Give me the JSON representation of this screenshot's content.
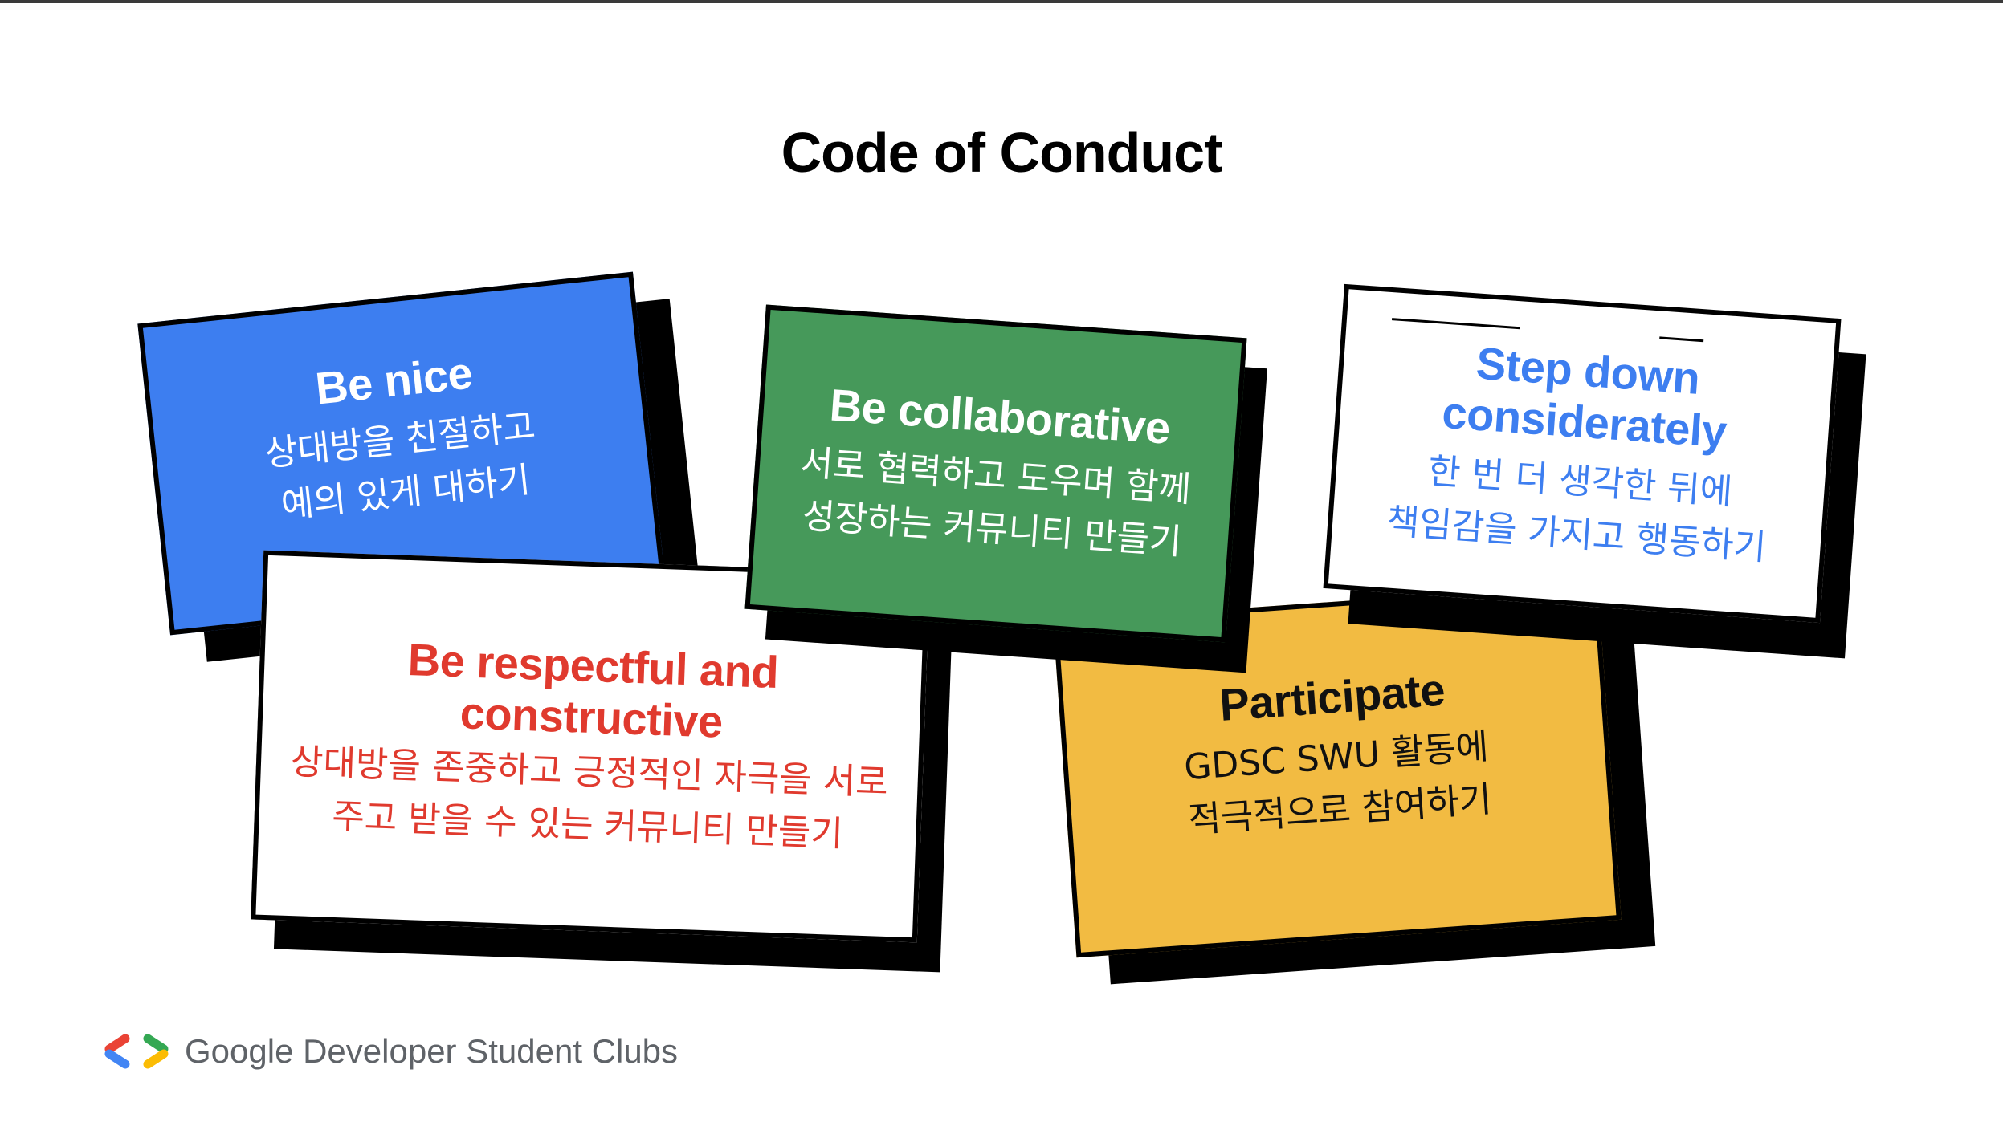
{
  "title": "Code of Conduct",
  "cards": {
    "be_nice": {
      "title": "Be nice",
      "desc_line1": "상대방을 친절하고",
      "desc_line2": "예의 있게 대하기"
    },
    "be_collaborative": {
      "title": "Be collaborative",
      "desc_line1": "서로 협력하고 도우며 함께",
      "desc_line2": "성장하는 커뮤니티 만들기"
    },
    "step_down": {
      "title_line1": "Step down",
      "title_line2": "considerately",
      "desc_line1": "한 번 더 생각한 뒤에",
      "desc_line2": "책임감을 가지고 행동하기"
    },
    "be_respectful": {
      "title_line1": "Be respectful and",
      "title_line2": "constructive",
      "desc_line1": "상대방을 존중하고 긍정적인 자극을 서로",
      "desc_line2": "주고 받을 수 있는 커뮤니티 만들기"
    },
    "participate": {
      "title": "Participate",
      "desc_line1": "GDSC SWU 활동에",
      "desc_line2": "적극적으로 참여하기"
    }
  },
  "colors": {
    "blue": "#3d7ef0",
    "green": "#46995a",
    "yellow": "#f2bb42",
    "red": "#e03a2e"
  },
  "footer": {
    "logo_icon": "gdsc-logo-icon",
    "text": "Google Developer Student Clubs"
  }
}
